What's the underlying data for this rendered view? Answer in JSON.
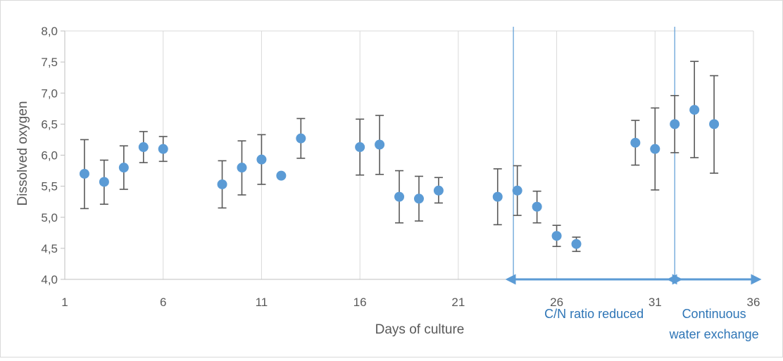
{
  "chart_data": {
    "type": "scatter",
    "title": "",
    "xlabel": "Days of culture",
    "ylabel": "Dissolved oxygen",
    "xlim": [
      1,
      36
    ],
    "ylim": [
      4.0,
      8.0
    ],
    "xticks": [
      1,
      6,
      11,
      16,
      21,
      26,
      31,
      36
    ],
    "yticks": [
      4.0,
      4.5,
      5.0,
      5.5,
      6.0,
      6.5,
      7.0,
      7.5,
      8.0
    ],
    "ytick_labels": [
      "4,0",
      "4,5",
      "5,0",
      "5,5",
      "6,0",
      "6,5",
      "7,0",
      "7,5",
      "8,0"
    ],
    "grid": "vertical",
    "legend": "none",
    "marker_color": "#5b9bd5",
    "errorbar_color": "#595959",
    "annotation_color": "#5b9bd5",
    "points": [
      {
        "x": 2,
        "y": 5.7,
        "err_low": 5.14,
        "err_high": 6.25
      },
      {
        "x": 3,
        "y": 5.57,
        "err_low": 5.21,
        "err_high": 5.92
      },
      {
        "x": 4,
        "y": 5.8,
        "err_low": 5.45,
        "err_high": 6.15
      },
      {
        "x": 5,
        "y": 6.13,
        "err_low": 5.88,
        "err_high": 6.38
      },
      {
        "x": 6,
        "y": 6.1,
        "err_low": 5.9,
        "err_high": 6.3
      },
      {
        "x": 9,
        "y": 5.53,
        "err_low": 5.15,
        "err_high": 5.91
      },
      {
        "x": 10,
        "y": 5.8,
        "err_low": 5.36,
        "err_high": 6.23
      },
      {
        "x": 11,
        "y": 5.93,
        "err_low": 5.53,
        "err_high": 6.33
      },
      {
        "x": 12,
        "y": 5.67,
        "err_low": 5.65,
        "err_high": 5.69
      },
      {
        "x": 13,
        "y": 6.27,
        "err_low": 5.95,
        "err_high": 6.59
      },
      {
        "x": 16,
        "y": 6.13,
        "err_low": 5.68,
        "err_high": 6.58
      },
      {
        "x": 17,
        "y": 6.17,
        "err_low": 5.69,
        "err_high": 6.64
      },
      {
        "x": 18,
        "y": 5.33,
        "err_low": 4.91,
        "err_high": 5.75
      },
      {
        "x": 19,
        "y": 5.3,
        "err_low": 4.94,
        "err_high": 5.66
      },
      {
        "x": 20,
        "y": 5.43,
        "err_low": 5.23,
        "err_high": 5.64
      },
      {
        "x": 23,
        "y": 5.33,
        "err_low": 4.88,
        "err_high": 5.78
      },
      {
        "x": 24,
        "y": 5.43,
        "err_low": 5.03,
        "err_high": 5.83
      },
      {
        "x": 25,
        "y": 5.17,
        "err_low": 4.91,
        "err_high": 5.42
      },
      {
        "x": 26,
        "y": 4.7,
        "err_low": 4.53,
        "err_high": 4.87
      },
      {
        "x": 27,
        "y": 4.57,
        "err_low": 4.45,
        "err_high": 4.68
      },
      {
        "x": 30,
        "y": 6.2,
        "err_low": 5.84,
        "err_high": 6.56
      },
      {
        "x": 31,
        "y": 6.1,
        "err_low": 5.44,
        "err_high": 6.76
      },
      {
        "x": 32,
        "y": 6.5,
        "err_low": 6.04,
        "err_high": 6.96
      },
      {
        "x": 33,
        "y": 6.73,
        "err_low": 5.96,
        "err_high": 7.51
      },
      {
        "x": 34,
        "y": 6.5,
        "err_low": 5.71,
        "err_high": 7.28
      }
    ],
    "annotations": [
      {
        "x_start": 23.8,
        "x_end": 32.0,
        "text_lines": [
          "C/N ratio reduced"
        ]
      },
      {
        "x_start": 32.0,
        "x_end": 36.0,
        "text_lines": [
          "Continuous",
          "water exchange"
        ]
      }
    ]
  }
}
